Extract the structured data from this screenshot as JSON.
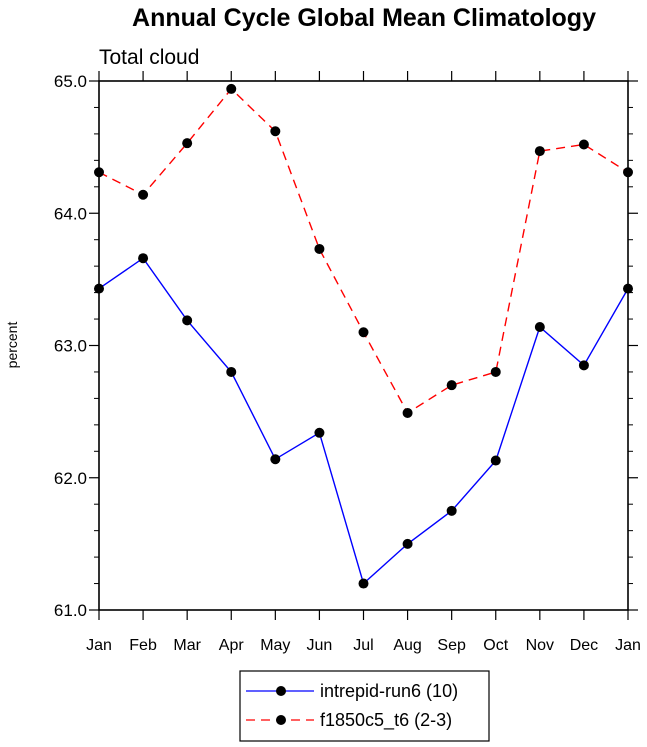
{
  "chart_data": {
    "type": "line",
    "title": "Annual Cycle Global Mean Climatology",
    "subtitle": "Total cloud",
    "xlabel": "",
    "ylabel": "percent",
    "categories": [
      "Jan",
      "Feb",
      "Mar",
      "Apr",
      "May",
      "Jun",
      "Jul",
      "Aug",
      "Sep",
      "Oct",
      "Nov",
      "Dec",
      "Jan"
    ],
    "yticks": [
      "61.0",
      "62.0",
      "63.0",
      "64.0",
      "65.0"
    ],
    "ylim": [
      61.0,
      65.0
    ],
    "grid": false,
    "legend_position": "bottom-center",
    "series": [
      {
        "name": "intrepid-run6 (10)",
        "color": "#0000ff",
        "line_style": "solid",
        "marker": "filled-circle",
        "values": [
          63.43,
          63.66,
          63.19,
          62.8,
          62.14,
          62.34,
          61.2,
          61.5,
          61.75,
          62.13,
          63.14,
          62.85,
          63.43
        ]
      },
      {
        "name": "f1850c5_t6 (2-3)",
        "color": "#ff0000",
        "line_style": "dashed",
        "marker": "filled-circle",
        "values": [
          64.31,
          64.14,
          64.53,
          64.94,
          64.62,
          63.73,
          63.1,
          62.49,
          62.7,
          62.8,
          64.47,
          64.52,
          64.31
        ]
      }
    ]
  }
}
